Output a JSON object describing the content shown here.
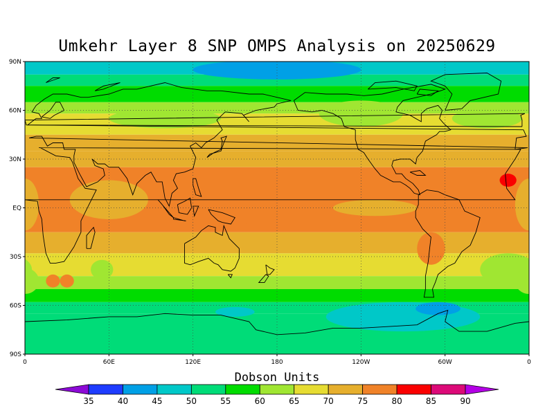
{
  "title": "Umkehr Layer 8 SNP OMPS Analysis on 20250629",
  "map": {
    "lat_ticks": [
      {
        "value": 90,
        "label": "90N"
      },
      {
        "value": 60,
        "label": "60N"
      },
      {
        "value": 30,
        "label": "30N"
      },
      {
        "value": 0,
        "label": "EQ"
      },
      {
        "value": -30,
        "label": "30S"
      },
      {
        "value": -60,
        "label": "60S"
      },
      {
        "value": -90,
        "label": "90S"
      }
    ],
    "lon_ticks": [
      {
        "value": 0,
        "label": "0"
      },
      {
        "value": 60,
        "label": "60E"
      },
      {
        "value": 120,
        "label": "120E"
      },
      {
        "value": 180,
        "label": "180"
      },
      {
        "value": 240,
        "label": "120W"
      },
      {
        "value": 300,
        "label": "60W"
      },
      {
        "value": 360,
        "label": "0"
      }
    ],
    "lat_range": [
      -90,
      90
    ],
    "lon_range": [
      0,
      360
    ],
    "grid": "dotted",
    "coastlines": true,
    "zonal_bands": [
      {
        "lat_max": 90,
        "lat_min": 82,
        "level": 45
      },
      {
        "lat_max": 82,
        "lat_min": 75,
        "level": 50
      },
      {
        "lat_max": 75,
        "lat_min": 65,
        "level": 55
      },
      {
        "lat_max": 65,
        "lat_min": 58,
        "level": 60
      },
      {
        "lat_max": 58,
        "lat_min": 45,
        "level": 65
      },
      {
        "lat_max": 45,
        "lat_min": 35,
        "level": 70
      },
      {
        "lat_max": 35,
        "lat_min": 25,
        "level": 70
      },
      {
        "lat_max": 25,
        "lat_min": -15,
        "level": 75
      },
      {
        "lat_max": -15,
        "lat_min": -28,
        "level": 70
      },
      {
        "lat_max": -28,
        "lat_min": -42,
        "level": 65
      },
      {
        "lat_max": -42,
        "lat_min": -50,
        "level": 60
      },
      {
        "lat_max": -50,
        "lat_min": -58,
        "level": 55
      },
      {
        "lat_max": -58,
        "lat_min": -65,
        "level": 50
      },
      {
        "lat_max": -65,
        "lat_min": -90,
        "level": 50
      }
    ],
    "blobs": [
      {
        "lon": 180,
        "lat": 85,
        "rlon": 60,
        "rlat": 6,
        "level": 40
      },
      {
        "lon": 270,
        "lat": -67,
        "rlon": 55,
        "rlat": 9,
        "level": 45
      },
      {
        "lon": 295,
        "lat": -62,
        "rlon": 16,
        "rlat": 4,
        "level": 40
      },
      {
        "lon": 150,
        "lat": -64,
        "rlon": 14,
        "rlat": 3,
        "level": 45
      },
      {
        "lon": 60,
        "lat": 5,
        "rlon": 28,
        "rlat": 12,
        "level": 70
      },
      {
        "lon": 0,
        "lat": 2,
        "rlon": 10,
        "rlat": 16,
        "level": 70
      },
      {
        "lon": 190,
        "lat": -5,
        "rlon": 40,
        "rlat": 8,
        "level": 75
      },
      {
        "lon": 250,
        "lat": 0,
        "rlon": 30,
        "rlat": 5,
        "level": 70
      },
      {
        "lon": 345,
        "lat": 17,
        "rlon": 6,
        "rlat": 4,
        "level": 80
      },
      {
        "lon": 55,
        "lat": -38,
        "rlon": 8,
        "rlat": 6,
        "level": 60
      },
      {
        "lon": 345,
        "lat": -38,
        "rlon": 20,
        "rlat": 10,
        "level": 60
      },
      {
        "lon": 20,
        "lat": -45,
        "rlon": 5,
        "rlat": 4,
        "level": 75
      },
      {
        "lon": 30,
        "lat": -45,
        "rlon": 5,
        "rlat": 4,
        "level": 75
      },
      {
        "lon": 290,
        "lat": -25,
        "rlon": 10,
        "rlat": 10,
        "level": 75
      },
      {
        "lon": 240,
        "lat": 58,
        "rlon": 30,
        "rlat": 8,
        "level": 60
      },
      {
        "lon": 330,
        "lat": 55,
        "rlon": 25,
        "rlat": 6,
        "level": 60
      },
      {
        "lon": 100,
        "lat": 55,
        "rlon": 40,
        "rlat": 6,
        "level": 60
      },
      {
        "lon": 0,
        "lat": -45,
        "rlon": 10,
        "rlat": 8,
        "level": 60
      }
    ]
  },
  "colorbar": {
    "title": "Dobson Units",
    "levels": [
      35,
      40,
      45,
      50,
      55,
      60,
      65,
      70,
      75,
      80,
      85,
      90
    ],
    "colors": [
      "#8c0ad6",
      "#1e3cff",
      "#00a0e6",
      "#00c8c8",
      "#00dc78",
      "#00dc00",
      "#a0e632",
      "#e6dc32",
      "#e6af2d",
      "#f08228",
      "#fa0000",
      "#dc0a78",
      "#b400e6"
    ],
    "labels": [
      "35",
      "40",
      "45",
      "50",
      "55",
      "60",
      "65",
      "70",
      "75",
      "80",
      "85",
      "90"
    ]
  }
}
